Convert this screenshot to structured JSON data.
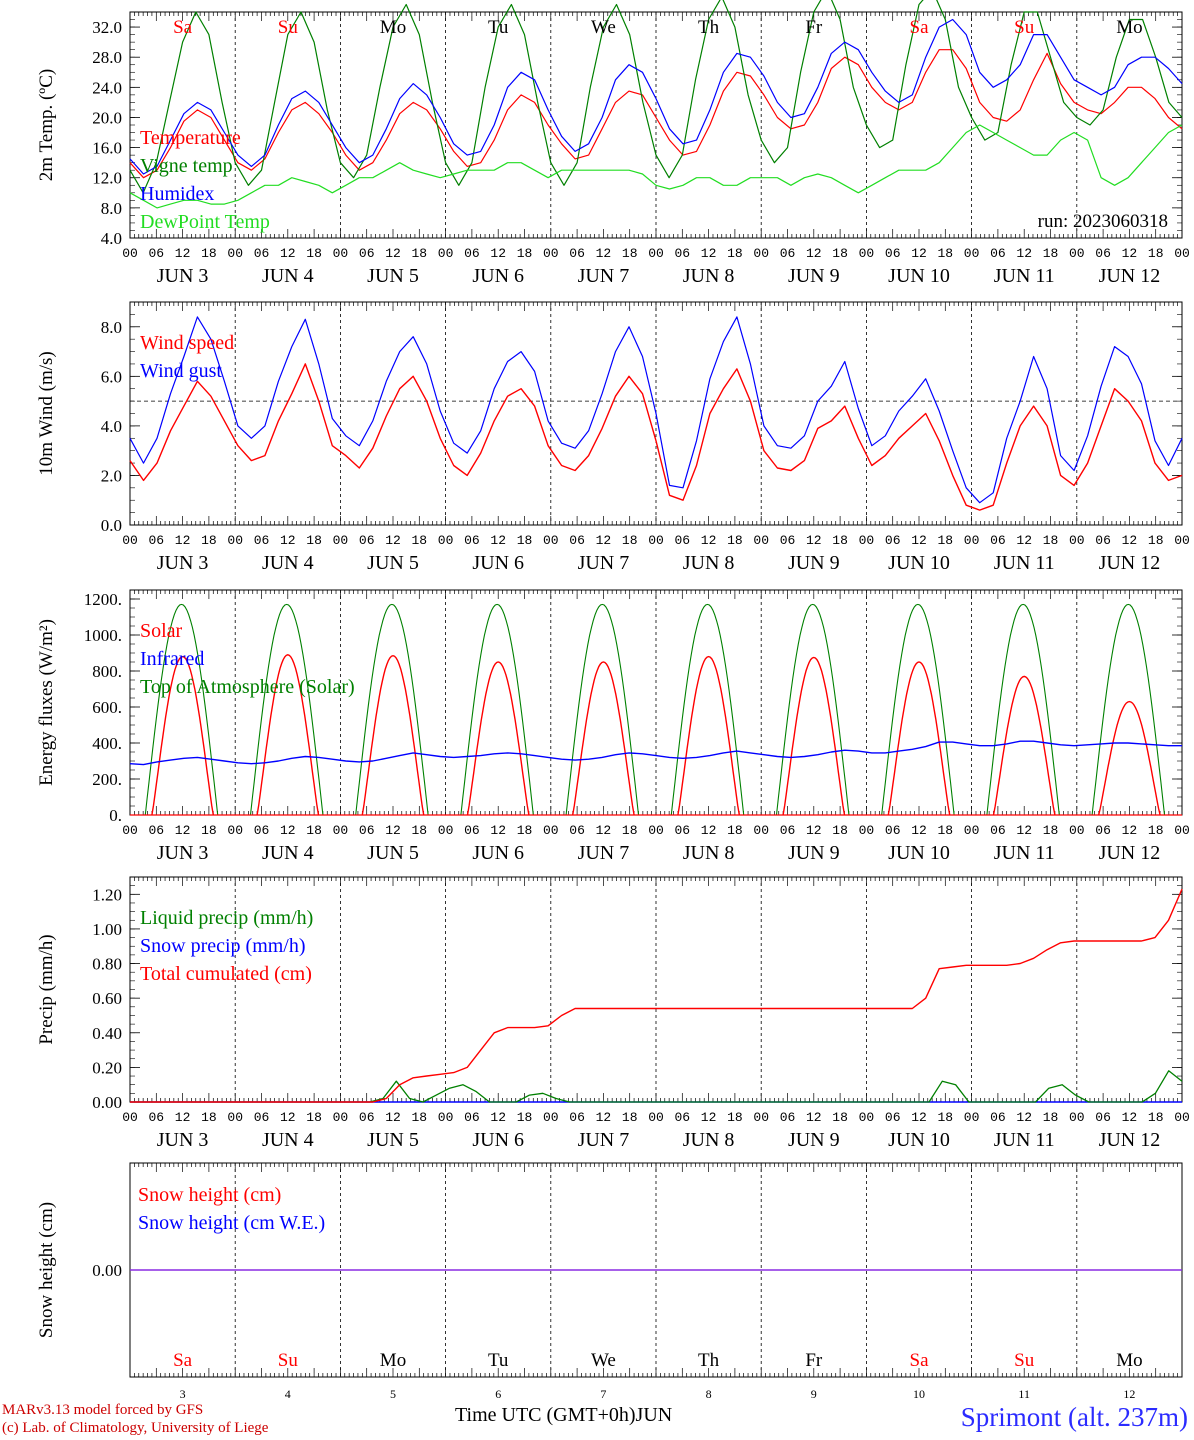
{
  "colors": {
    "red": "#ff0000",
    "green": "#008000",
    "blue": "#0000ff",
    "lime": "#22dd22",
    "purple": "#8a2be2"
  },
  "x_axis": {
    "hour_ticks": [
      "00",
      "06",
      "12",
      "18"
    ],
    "end_tick": "00",
    "dates": [
      "JUN  3",
      "JUN  4",
      "JUN  5",
      "JUN  6",
      "JUN  7",
      "JUN  8",
      "JUN  9",
      "JUN 10",
      "JUN 11",
      "JUN 12"
    ],
    "weekdays": [
      "Sa",
      "Su",
      "Mo",
      "Tu",
      "We",
      "Th",
      "Fr",
      "Sa",
      "Su",
      "Mo"
    ],
    "weekday_colors": [
      "red",
      "red",
      "black",
      "black",
      "black",
      "black",
      "black",
      "red",
      "red",
      "black"
    ],
    "day_numbers": [
      "3",
      "4",
      "5",
      "6",
      "7",
      "8",
      "9",
      "10",
      "11",
      "12"
    ],
    "title": "Time UTC (GMT+0h)",
    "month": "JUN"
  },
  "run_label": "run: 2023060318",
  "credits": [
    "MARv3.13 model forced by GFS",
    "(c) Lab. of Climatology, University of Liege"
  ],
  "site": "Sprimont (alt. 237m)",
  "chart_data": [
    {
      "type": "line",
      "ylabel": "2m Temp. (ºC)",
      "ylim": [
        4,
        34
      ],
      "yticks": [
        "4.0",
        "8.0",
        "12.0",
        "16.0",
        "20.0",
        "24.0",
        "28.0",
        "32.0"
      ],
      "show_weekdays_top": true,
      "series": [
        {
          "name": "Temperature",
          "color": "red",
          "values": [
            14,
            12,
            13,
            16,
            19.5,
            21,
            20,
            17,
            14,
            13,
            14.5,
            18,
            21,
            22,
            20.5,
            18,
            15,
            13,
            14,
            17,
            20.5,
            22,
            21,
            18.5,
            15.5,
            13.5,
            14,
            17,
            21,
            23,
            22,
            19,
            16.5,
            14.5,
            15,
            18.5,
            22,
            23.5,
            23,
            20,
            17,
            15,
            15.5,
            19,
            23.5,
            26,
            25.5,
            23,
            20,
            18.5,
            19,
            22,
            26.5,
            28,
            27,
            24,
            22,
            21,
            22,
            26,
            29,
            29,
            26.5,
            22,
            20,
            19.5,
            21,
            25,
            28.5,
            24.5,
            22,
            21,
            20.5,
            22,
            24,
            24,
            22.5,
            20,
            18.5
          ]
        },
        {
          "name": "Vigne temp",
          "color": "green",
          "values": [
            13,
            10,
            14,
            22,
            30,
            34,
            31,
            22,
            14,
            11,
            13,
            22,
            31,
            34,
            30,
            21,
            14,
            12,
            15,
            24,
            32,
            35,
            31,
            22,
            14,
            11,
            14,
            24,
            32,
            35,
            31,
            22,
            14,
            11,
            14,
            24,
            32,
            35,
            31,
            22,
            15,
            12,
            15,
            25,
            33,
            36,
            32,
            23,
            17,
            14,
            16,
            26,
            34,
            37,
            33,
            24,
            19,
            16,
            17,
            27,
            35,
            37,
            33,
            24,
            20,
            17,
            18,
            27,
            34,
            34,
            28,
            22,
            20,
            19,
            21,
            28,
            33,
            33,
            28,
            22,
            20
          ]
        },
        {
          "name": "Humidex",
          "color": "blue",
          "values": [
            14.5,
            12.5,
            13.5,
            17,
            20.5,
            22,
            21,
            18,
            15,
            13.5,
            15,
            19,
            22.5,
            23.5,
            22,
            19,
            16,
            14,
            15,
            18.5,
            22.5,
            24.5,
            23,
            20,
            16.5,
            15,
            15.5,
            19,
            24,
            26,
            25,
            21,
            17.5,
            15.5,
            16.5,
            20,
            25,
            27,
            26,
            22.5,
            18.5,
            16.5,
            17,
            21,
            26,
            28.5,
            28,
            25.5,
            22,
            20,
            20.5,
            24,
            28.5,
            30,
            29,
            26,
            23.5,
            22,
            23,
            28,
            32,
            33,
            31,
            26,
            24,
            25,
            27,
            31,
            31,
            28,
            25,
            24,
            23,
            24,
            27,
            28,
            28,
            26.5,
            24.5
          ]
        },
        {
          "name": "DewPoint Temp",
          "color": "lime",
          "values": [
            10,
            9,
            8,
            8.5,
            9,
            9,
            8.5,
            8.5,
            9,
            10,
            11,
            11,
            12,
            11.5,
            11,
            10,
            11,
            12,
            12,
            13,
            14,
            13,
            12.5,
            12,
            12.5,
            13,
            13,
            13,
            14,
            14,
            13,
            12,
            13,
            13,
            13,
            13,
            13,
            13,
            12.5,
            11,
            10.5,
            11,
            12,
            12,
            11,
            11,
            12,
            12,
            12,
            11,
            12,
            12.5,
            12,
            11,
            10,
            11,
            12,
            13,
            13,
            13,
            14,
            16,
            18,
            19,
            18,
            17,
            16,
            15,
            15,
            17,
            18,
            17,
            12,
            11,
            12,
            14,
            16,
            18,
            19
          ]
        }
      ]
    },
    {
      "type": "line",
      "ylabel": "10m Wind (m/s)",
      "ylim": [
        0,
        9
      ],
      "yticks": [
        "0.0",
        "2.0",
        "4.0",
        "6.0",
        "8.0"
      ],
      "reference_line": 5.0,
      "series": [
        {
          "name": "Wind speed",
          "color": "red",
          "values": [
            2.6,
            1.8,
            2.5,
            3.8,
            4.8,
            5.8,
            5.2,
            4.2,
            3.2,
            2.6,
            2.8,
            4.2,
            5.3,
            6.5,
            5.0,
            3.2,
            2.8,
            2.3,
            3.1,
            4.4,
            5.5,
            6.0,
            5.0,
            3.5,
            2.4,
            2.0,
            2.9,
            4.2,
            5.2,
            5.5,
            4.8,
            3.2,
            2.4,
            2.2,
            2.8,
            3.9,
            5.2,
            6.0,
            5.3,
            3.4,
            1.2,
            1.0,
            2.4,
            4.5,
            5.5,
            6.3,
            5.0,
            3.0,
            2.3,
            2.2,
            2.6,
            3.9,
            4.2,
            4.8,
            3.5,
            2.4,
            2.8,
            3.5,
            4.0,
            4.5,
            3.4,
            2.0,
            0.8,
            0.6,
            0.8,
            2.5,
            4.0,
            4.8,
            4.0,
            2.0,
            1.6,
            2.5,
            4.0,
            5.5,
            5.0,
            4.2,
            2.5,
            1.8,
            2.0
          ]
        },
        {
          "name": "Wind gust",
          "color": "blue",
          "values": [
            3.5,
            2.5,
            3.5,
            5.3,
            6.8,
            8.4,
            7.5,
            5.8,
            4.0,
            3.5,
            4.0,
            5.8,
            7.2,
            8.3,
            6.5,
            4.3,
            3.6,
            3.2,
            4.2,
            5.8,
            7.0,
            7.6,
            6.5,
            4.6,
            3.3,
            2.9,
            3.8,
            5.5,
            6.6,
            7.0,
            6.2,
            4.2,
            3.3,
            3.1,
            3.8,
            5.3,
            7.0,
            8.0,
            6.8,
            4.5,
            1.6,
            1.5,
            3.4,
            5.9,
            7.4,
            8.4,
            6.5,
            4.0,
            3.2,
            3.1,
            3.6,
            5.0,
            5.6,
            6.6,
            4.7,
            3.2,
            3.6,
            4.6,
            5.2,
            5.9,
            4.6,
            3.0,
            1.5,
            0.9,
            1.3,
            3.5,
            5.0,
            6.8,
            5.5,
            2.8,
            2.2,
            3.6,
            5.6,
            7.2,
            6.8,
            5.7,
            3.4,
            2.4,
            3.5
          ]
        }
      ]
    },
    {
      "type": "line",
      "ylabel": "Energy fluxes (W/m²)",
      "ylim": [
        0,
        1250
      ],
      "yticks": [
        "0.",
        "200.",
        "400.",
        "600.",
        "800.",
        "1000.",
        "1200."
      ],
      "series": [
        {
          "name": "Solar",
          "color": "red",
          "daily_peaks": [
            880,
            890,
            885,
            850,
            850,
            880,
            875,
            850,
            770,
            630
          ]
        },
        {
          "name": "Infrared",
          "color": "blue",
          "values": [
            285,
            280,
            295,
            305,
            315,
            320,
            310,
            300,
            290,
            285,
            290,
            300,
            315,
            325,
            320,
            310,
            300,
            295,
            300,
            315,
            330,
            345,
            335,
            325,
            320,
            325,
            330,
            340,
            345,
            340,
            330,
            320,
            310,
            305,
            310,
            320,
            335,
            345,
            340,
            330,
            320,
            315,
            320,
            330,
            345,
            355,
            345,
            335,
            325,
            320,
            325,
            335,
            350,
            360,
            355,
            345,
            345,
            355,
            365,
            380,
            405,
            405,
            395,
            385,
            385,
            395,
            410,
            410,
            400,
            390,
            385,
            390,
            395,
            400,
            400,
            395,
            390,
            385,
            385
          ]
        },
        {
          "name": "Top of Atmosphere (Solar)",
          "color": "green",
          "daily_peak": 1170
        }
      ]
    },
    {
      "type": "line",
      "ylabel": "Precip (mm/h)",
      "ylim": [
        0,
        1.3
      ],
      "yticks": [
        "0.00",
        "0.20",
        "0.40",
        "0.60",
        "0.80",
        "1.00",
        "1.20"
      ],
      "series": [
        {
          "name": "Liquid precip (mm/h)",
          "color": "green",
          "values": [
            0,
            0,
            0,
            0,
            0,
            0,
            0,
            0,
            0,
            0,
            0,
            0,
            0,
            0,
            0,
            0,
            0,
            0,
            0,
            0.02,
            0.12,
            0.02,
            0,
            0.04,
            0.08,
            0.1,
            0.06,
            0,
            0,
            0,
            0.04,
            0.05,
            0.02,
            0,
            0,
            0,
            0,
            0,
            0,
            0,
            0,
            0,
            0,
            0,
            0,
            0,
            0,
            0,
            0,
            0,
            0,
            0,
            0,
            0,
            0,
            0,
            0,
            0,
            0,
            0,
            0,
            0.12,
            0.1,
            0,
            0,
            0,
            0,
            0,
            0,
            0.08,
            0.1,
            0.04,
            0,
            0,
            0,
            0,
            0,
            0.05,
            0.18,
            0.12
          ]
        },
        {
          "name": "Snow precip (mm/h)",
          "color": "blue",
          "values": [
            0,
            0,
            0,
            0,
            0,
            0,
            0,
            0,
            0,
            0,
            0,
            0,
            0,
            0,
            0,
            0,
            0,
            0,
            0,
            0,
            0,
            0,
            0,
            0,
            0,
            0,
            0,
            0,
            0,
            0,
            0,
            0,
            0,
            0,
            0,
            0,
            0,
            0,
            0,
            0,
            0,
            0,
            0,
            0,
            0,
            0,
            0,
            0,
            0,
            0,
            0,
            0,
            0,
            0,
            0,
            0,
            0,
            0,
            0,
            0,
            0,
            0,
            0,
            0,
            0,
            0,
            0,
            0,
            0,
            0,
            0,
            0,
            0,
            0,
            0,
            0,
            0,
            0,
            0,
            0,
            0
          ]
        },
        {
          "name": "Total cumulated (cm)",
          "color": "red",
          "values": [
            0,
            0,
            0,
            0,
            0,
            0,
            0,
            0,
            0,
            0,
            0,
            0,
            0,
            0,
            0,
            0,
            0,
            0,
            0,
            0.02,
            0.1,
            0.14,
            0.15,
            0.16,
            0.17,
            0.2,
            0.3,
            0.4,
            0.43,
            0.43,
            0.43,
            0.44,
            0.5,
            0.54,
            0.54,
            0.54,
            0.54,
            0.54,
            0.54,
            0.54,
            0.54,
            0.54,
            0.54,
            0.54,
            0.54,
            0.54,
            0.54,
            0.54,
            0.54,
            0.54,
            0.54,
            0.54,
            0.54,
            0.54,
            0.54,
            0.54,
            0.54,
            0.54,
            0.54,
            0.6,
            0.77,
            0.78,
            0.79,
            0.79,
            0.79,
            0.79,
            0.8,
            0.83,
            0.88,
            0.92,
            0.93,
            0.93,
            0.93,
            0.93,
            0.93,
            0.93,
            0.95,
            1.05,
            1.23
          ]
        }
      ]
    },
    {
      "type": "line",
      "ylabel": "Snow height (cm)",
      "yticks": [
        "0.00"
      ],
      "show_weekdays_bottom": true,
      "series": [
        {
          "name": "Snow height (cm)",
          "color": "red",
          "values": [
            0,
            0
          ]
        },
        {
          "name": "Snow height (cm W.E.)",
          "color": "blue",
          "values": [
            0,
            0
          ]
        }
      ]
    }
  ]
}
